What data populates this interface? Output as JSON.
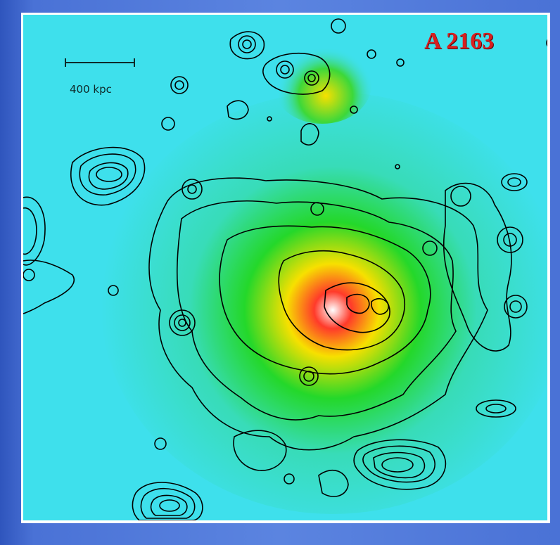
{
  "image": {
    "title": "A 2163",
    "scale_bar_label": "400 kpc"
  },
  "colors": {
    "background_slide": "#3b63c9",
    "map_low": "#3ee0ec",
    "map_mid": "#20d820",
    "map_high": "#e8f000",
    "map_peak": "#ff2a10",
    "contour": "#000000",
    "title_color": "#d81f1f"
  }
}
